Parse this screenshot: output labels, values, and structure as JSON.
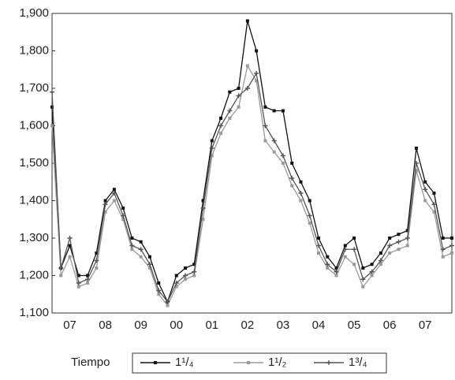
{
  "chart_data": {
    "type": "line",
    "x_label": "Tiempo",
    "categories": [
      null,
      null,
      "07",
      null,
      null,
      null,
      "08",
      null,
      null,
      null,
      "09",
      null,
      null,
      null,
      "00",
      null,
      null,
      null,
      "01",
      null,
      null,
      null,
      "02",
      null,
      null,
      null,
      "03",
      null,
      null,
      null,
      "04",
      null,
      null,
      null,
      "05",
      null,
      null,
      null,
      "06",
      null,
      null,
      null,
      "07",
      null,
      null,
      null
    ],
    "series": [
      {
        "name": "1¹/₄",
        "color": "#111111",
        "marker": "square",
        "values": [
          1650,
          1220,
          1280,
          1200,
          1200,
          1260,
          1400,
          1430,
          1380,
          1300,
          1290,
          1250,
          1180,
          1130,
          1200,
          1220,
          1230,
          1400,
          1560,
          1620,
          1690,
          1700,
          1880,
          1800,
          1650,
          1640,
          1640,
          1500,
          1450,
          1400,
          1300,
          1250,
          1220,
          1280,
          1300,
          1220,
          1230,
          1260,
          1300,
          1310,
          1320,
          1540,
          1450,
          1420,
          1300,
          1300
        ]
      },
      {
        "name": "1¹/₂",
        "color": "#9a9a9a",
        "marker": "square",
        "values": [
          1600,
          1200,
          1250,
          1170,
          1180,
          1220,
          1370,
          1400,
          1350,
          1270,
          1250,
          1220,
          1150,
          1120,
          1170,
          1190,
          1200,
          1350,
          1520,
          1580,
          1620,
          1650,
          1760,
          1720,
          1560,
          1530,
          1500,
          1440,
          1400,
          1340,
          1260,
          1220,
          1200,
          1250,
          1230,
          1170,
          1200,
          1230,
          1260,
          1270,
          1280,
          1480,
          1400,
          1370,
          1250,
          1260
        ]
      },
      {
        "name": "1³/₄",
        "color": "#555555",
        "marker": "plus",
        "values": [
          1690,
          1220,
          1300,
          1180,
          1190,
          1240,
          1390,
          1420,
          1360,
          1280,
          1270,
          1230,
          1160,
          1130,
          1180,
          1200,
          1210,
          1380,
          1540,
          1600,
          1640,
          1680,
          1700,
          1740,
          1600,
          1560,
          1520,
          1460,
          1420,
          1360,
          1280,
          1230,
          1210,
          1270,
          1270,
          1190,
          1210,
          1240,
          1280,
          1290,
          1300,
          1500,
          1430,
          1390,
          1270,
          1280
        ]
      }
    ],
    "ylim": [
      1100,
      1900
    ],
    "yticks": [
      {
        "value": 1100,
        "label": "1,100"
      },
      {
        "value": 1200,
        "label": "1,200"
      },
      {
        "value": 1300,
        "label": "1,300"
      },
      {
        "value": 1400,
        "label": "1,400"
      },
      {
        "value": 1500,
        "label": "1,500"
      },
      {
        "value": 1600,
        "label": "1,600"
      },
      {
        "value": 1700,
        "label": "1,700"
      },
      {
        "value": 1800,
        "label": "1,800"
      },
      {
        "value": 1900,
        "label": "1,900"
      }
    ],
    "grid": false,
    "legend": "bottom"
  }
}
